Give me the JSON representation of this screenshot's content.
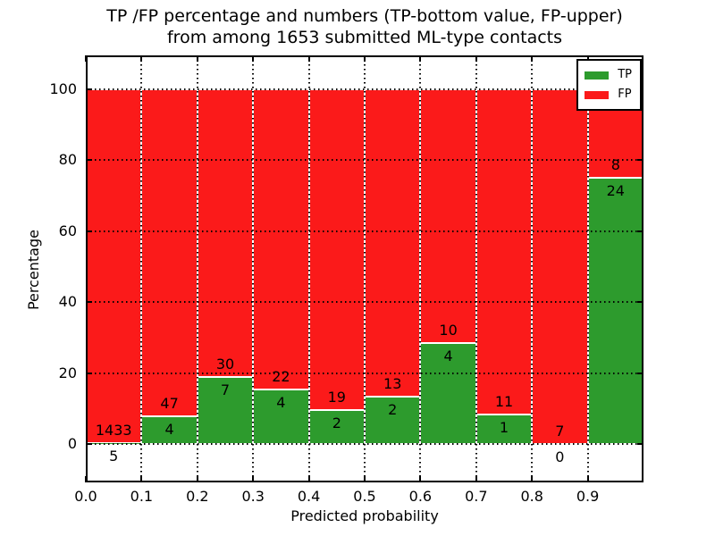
{
  "title": {
    "line1": "TP /FP percentage and numbers (TP-bottom value, FP-upper)",
    "line2": "from among 1653 submitted ML-type contacts"
  },
  "colors": {
    "tp_green": "#2d9b2d",
    "fp_red": "#fb1a1a",
    "bar_edge": "#ffffff",
    "grid": "#000000"
  },
  "legend": {
    "entries": [
      {
        "label": "TP",
        "color": "#2d9b2d"
      },
      {
        "label": "FP",
        "color": "#fb1a1a"
      }
    ],
    "position": "upper-right"
  },
  "chart_data": {
    "type": "bar",
    "stacked": true,
    "normalized_total": 100,
    "title": "TP /FP percentage and numbers (TP-bottom value, FP-upper) from among 1653 submitted ML-type contacts",
    "xlabel": "Predicted probability",
    "ylabel": "Percentage",
    "xlim": [
      0.0,
      1.0
    ],
    "ylim": [
      -10.8,
      109.6
    ],
    "grid": true,
    "x_tick_labels": [
      "0.0",
      "0.1",
      "0.2",
      "0.3",
      "0.4",
      "0.5",
      "0.6",
      "0.7",
      "0.8",
      "0.9"
    ],
    "y_tick_values": [
      0,
      20,
      40,
      60,
      80,
      100
    ],
    "total_contacts": 1653,
    "bin_width": 0.1,
    "series": [
      {
        "name": "TP",
        "values": [
          5,
          4,
          7,
          4,
          2,
          2,
          4,
          1,
          0,
          24
        ]
      },
      {
        "name": "FP",
        "values": [
          1433,
          47,
          30,
          22,
          19,
          13,
          10,
          11,
          7,
          8
        ]
      }
    ],
    "bins": [
      {
        "range": [
          0.0,
          0.1
        ],
        "tp": 5,
        "fp": 1433,
        "tp_pct": 0.35
      },
      {
        "range": [
          0.1,
          0.2
        ],
        "tp": 4,
        "fp": 47,
        "tp_pct": 7.84
      },
      {
        "range": [
          0.2,
          0.3
        ],
        "tp": 7,
        "fp": 30,
        "tp_pct": 18.92
      },
      {
        "range": [
          0.3,
          0.4
        ],
        "tp": 4,
        "fp": 22,
        "tp_pct": 15.38
      },
      {
        "range": [
          0.4,
          0.5
        ],
        "tp": 2,
        "fp": 19,
        "tp_pct": 9.52
      },
      {
        "range": [
          0.5,
          0.6
        ],
        "tp": 2,
        "fp": 13,
        "tp_pct": 13.33
      },
      {
        "range": [
          0.6,
          0.7
        ],
        "tp": 4,
        "fp": 10,
        "tp_pct": 28.57
      },
      {
        "range": [
          0.7,
          0.8
        ],
        "tp": 1,
        "fp": 11,
        "tp_pct": 8.33
      },
      {
        "range": [
          0.8,
          0.9
        ],
        "tp": 0,
        "fp": 7,
        "tp_pct": 0.0
      },
      {
        "range": [
          0.9,
          1.0
        ],
        "tp": 24,
        "fp": 8,
        "tp_pct": 75.0
      }
    ]
  }
}
